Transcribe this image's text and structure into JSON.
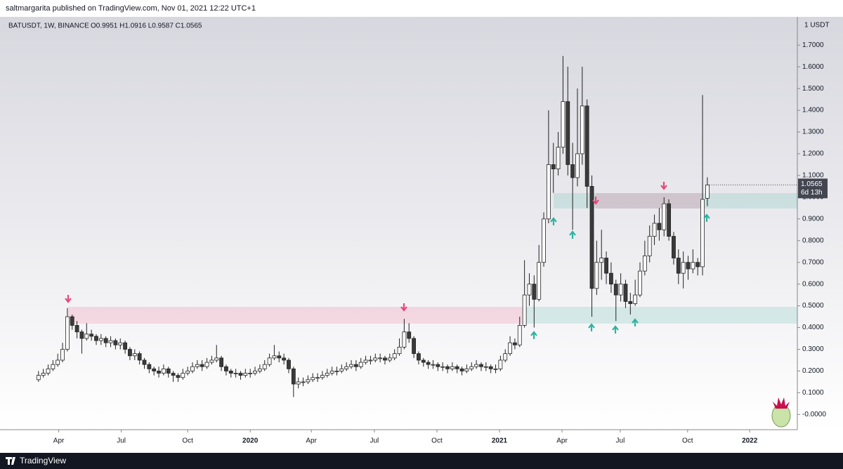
{
  "chart_data": {
    "type": "candlestick",
    "byline": "saltmargarita published on TradingView.com, Nov 01, 2021 12:22 UTC+1",
    "symbol": "BATUSDT, 1W, BINANCE",
    "ohlc_text": "O0.9951  H1.0916  L0.9587  C1.0565",
    "currency": "1 USDT",
    "last_price_label": "1.0565",
    "countdown": "6d 13h",
    "brand": "TradingView",
    "up_color": "#ffffff",
    "down_color": "#3a3a3a",
    "wick_color": "#222222",
    "open": [
      0.16,
      0.18,
      0.19,
      0.21,
      0.23,
      0.25,
      0.3,
      0.45,
      0.41,
      0.38,
      0.35,
      0.37,
      0.36,
      0.34,
      0.35,
      0.33,
      0.34,
      0.32,
      0.33,
      0.3,
      0.27,
      0.28,
      0.25,
      0.23,
      0.21,
      0.2,
      0.19,
      0.21,
      0.19,
      0.18,
      0.17,
      0.19,
      0.2,
      0.22,
      0.23,
      0.22,
      0.24,
      0.25,
      0.26,
      0.22,
      0.2,
      0.19,
      0.19,
      0.18,
      0.19,
      0.19,
      0.2,
      0.21,
      0.23,
      0.26,
      0.27,
      0.26,
      0.25,
      0.21,
      0.14,
      0.15,
      0.15,
      0.16,
      0.17,
      0.17,
      0.18,
      0.19,
      0.2,
      0.2,
      0.21,
      0.22,
      0.23,
      0.22,
      0.24,
      0.25,
      0.25,
      0.26,
      0.26,
      0.25,
      0.26,
      0.28,
      0.31,
      0.38,
      0.35,
      0.28,
      0.25,
      0.24,
      0.23,
      0.23,
      0.22,
      0.22,
      0.21,
      0.22,
      0.21,
      0.2,
      0.21,
      0.22,
      0.23,
      0.22,
      0.22,
      0.21,
      0.21,
      0.25,
      0.28,
      0.33,
      0.32,
      0.41,
      0.55,
      0.6,
      0.53,
      0.7,
      0.9,
      1.15,
      1.13,
      1.23,
      1.44,
      1.15,
      1.09,
      1.2,
      1.42,
      1.05,
      0.58,
      0.7,
      0.72,
      0.65,
      0.6,
      0.55,
      0.6,
      0.52,
      0.51,
      0.55,
      0.66,
      0.73,
      0.82,
      0.88,
      0.85,
      0.97,
      0.82,
      0.72,
      0.65,
      0.7,
      0.67,
      0.7,
      0.68,
      0.9951
    ],
    "high": [
      0.2,
      0.21,
      0.23,
      0.25,
      0.28,
      0.33,
      0.49,
      0.46,
      0.43,
      0.39,
      0.42,
      0.39,
      0.37,
      0.37,
      0.36,
      0.36,
      0.35,
      0.35,
      0.34,
      0.31,
      0.3,
      0.29,
      0.26,
      0.24,
      0.22,
      0.22,
      0.23,
      0.22,
      0.2,
      0.19,
      0.21,
      0.22,
      0.24,
      0.25,
      0.25,
      0.26,
      0.27,
      0.32,
      0.27,
      0.23,
      0.21,
      0.21,
      0.2,
      0.21,
      0.21,
      0.22,
      0.23,
      0.25,
      0.28,
      0.32,
      0.29,
      0.28,
      0.26,
      0.22,
      0.17,
      0.17,
      0.18,
      0.19,
      0.19,
      0.2,
      0.21,
      0.22,
      0.22,
      0.23,
      0.24,
      0.25,
      0.25,
      0.26,
      0.27,
      0.27,
      0.28,
      0.28,
      0.27,
      0.28,
      0.3,
      0.35,
      0.44,
      0.42,
      0.36,
      0.29,
      0.26,
      0.25,
      0.25,
      0.24,
      0.24,
      0.23,
      0.24,
      0.23,
      0.22,
      0.23,
      0.24,
      0.25,
      0.24,
      0.24,
      0.23,
      0.23,
      0.27,
      0.3,
      0.36,
      0.35,
      0.45,
      0.71,
      0.65,
      0.64,
      0.78,
      0.93,
      1.4,
      1.25,
      1.3,
      1.65,
      1.6,
      1.25,
      1.5,
      1.6,
      1.45,
      1.1,
      0.8,
      0.85,
      0.75,
      0.7,
      0.62,
      0.65,
      0.62,
      0.56,
      0.62,
      0.7,
      0.8,
      0.87,
      0.92,
      0.95,
      1.0,
      0.99,
      0.84,
      0.76,
      0.75,
      0.73,
      0.76,
      0.72,
      1.47,
      1.0916
    ],
    "low": [
      0.15,
      0.17,
      0.18,
      0.2,
      0.22,
      0.24,
      0.29,
      0.39,
      0.35,
      0.28,
      0.34,
      0.34,
      0.32,
      0.32,
      0.31,
      0.31,
      0.3,
      0.3,
      0.28,
      0.25,
      0.25,
      0.23,
      0.21,
      0.19,
      0.18,
      0.17,
      0.18,
      0.17,
      0.15,
      0.15,
      0.16,
      0.18,
      0.19,
      0.21,
      0.2,
      0.21,
      0.23,
      0.24,
      0.2,
      0.18,
      0.17,
      0.17,
      0.16,
      0.17,
      0.17,
      0.18,
      0.19,
      0.2,
      0.22,
      0.25,
      0.24,
      0.23,
      0.19,
      0.08,
      0.12,
      0.13,
      0.14,
      0.15,
      0.15,
      0.16,
      0.17,
      0.18,
      0.18,
      0.19,
      0.2,
      0.21,
      0.2,
      0.21,
      0.23,
      0.23,
      0.24,
      0.24,
      0.23,
      0.24,
      0.25,
      0.27,
      0.3,
      0.33,
      0.26,
      0.23,
      0.22,
      0.21,
      0.21,
      0.2,
      0.2,
      0.19,
      0.2,
      0.19,
      0.18,
      0.19,
      0.2,
      0.21,
      0.2,
      0.2,
      0.19,
      0.19,
      0.2,
      0.24,
      0.27,
      0.3,
      0.31,
      0.4,
      0.5,
      0.4,
      0.52,
      0.68,
      0.88,
      1.02,
      1.1,
      1.2,
      1.1,
      0.85,
      1.05,
      1.15,
      0.95,
      0.45,
      0.55,
      0.62,
      0.6,
      0.56,
      0.43,
      0.52,
      0.49,
      0.46,
      0.5,
      0.54,
      0.64,
      0.7,
      0.78,
      0.8,
      0.82,
      0.8,
      0.69,
      0.6,
      0.58,
      0.62,
      0.65,
      0.64,
      0.64,
      0.9587
    ],
    "close": [
      0.18,
      0.19,
      0.21,
      0.23,
      0.25,
      0.3,
      0.45,
      0.41,
      0.38,
      0.35,
      0.37,
      0.36,
      0.34,
      0.35,
      0.33,
      0.34,
      0.32,
      0.33,
      0.3,
      0.27,
      0.28,
      0.25,
      0.23,
      0.21,
      0.2,
      0.19,
      0.21,
      0.19,
      0.18,
      0.17,
      0.19,
      0.2,
      0.22,
      0.23,
      0.22,
      0.24,
      0.25,
      0.26,
      0.22,
      0.2,
      0.19,
      0.19,
      0.18,
      0.19,
      0.19,
      0.2,
      0.21,
      0.23,
      0.26,
      0.27,
      0.26,
      0.25,
      0.21,
      0.14,
      0.15,
      0.15,
      0.16,
      0.17,
      0.17,
      0.18,
      0.19,
      0.2,
      0.2,
      0.21,
      0.22,
      0.23,
      0.22,
      0.24,
      0.25,
      0.25,
      0.26,
      0.26,
      0.25,
      0.26,
      0.28,
      0.31,
      0.38,
      0.35,
      0.28,
      0.25,
      0.24,
      0.23,
      0.23,
      0.22,
      0.22,
      0.21,
      0.22,
      0.21,
      0.2,
      0.21,
      0.22,
      0.23,
      0.22,
      0.22,
      0.21,
      0.21,
      0.25,
      0.28,
      0.33,
      0.32,
      0.41,
      0.55,
      0.6,
      0.53,
      0.7,
      0.9,
      1.15,
      1.13,
      1.23,
      1.44,
      1.15,
      1.09,
      1.2,
      1.42,
      1.05,
      0.58,
      0.7,
      0.72,
      0.65,
      0.6,
      0.55,
      0.6,
      0.52,
      0.51,
      0.55,
      0.66,
      0.73,
      0.82,
      0.88,
      0.85,
      0.97,
      0.82,
      0.72,
      0.65,
      0.7,
      0.67,
      0.7,
      0.68,
      0.99,
      1.0565
    ],
    "xlim": [
      -8,
      157.7
    ],
    "xticks": [
      {
        "value": 4.2,
        "label": "Apr"
      },
      {
        "value": 17.2,
        "label": "Jul"
      },
      {
        "value": 31,
        "label": "Oct"
      },
      {
        "value": 44,
        "label": "2020"
      },
      {
        "value": 56.7,
        "label": "Apr"
      },
      {
        "value": 69.8,
        "label": "Jul"
      },
      {
        "value": 82.8,
        "label": "Oct"
      },
      {
        "value": 95.8,
        "label": "2021"
      },
      {
        "value": 108.8,
        "label": "Apr"
      },
      {
        "value": 120.9,
        "label": "Jul"
      },
      {
        "value": 134.9,
        "label": "Oct"
      },
      {
        "value": 147.8,
        "label": "2022"
      }
    ],
    "ylim": [
      -0.07,
      1.83
    ],
    "yticks": [
      {
        "value": 0,
        "label": "-0.0000"
      },
      {
        "value": 0.1,
        "label": "0.1000"
      },
      {
        "value": 0.2,
        "label": "0.2000"
      },
      {
        "value": 0.3,
        "label": "0.3000"
      },
      {
        "value": 0.4,
        "label": "0.4000"
      },
      {
        "value": 0.5,
        "label": "0.5000"
      },
      {
        "value": 0.6,
        "label": "0.6000"
      },
      {
        "value": 0.7,
        "label": "0.7000"
      },
      {
        "value": 0.8,
        "label": "0.8000"
      },
      {
        "value": 0.9,
        "label": "0.9000"
      },
      {
        "value": 1.0,
        "label": "1.0000"
      },
      {
        "value": 1.1,
        "label": "1.1000"
      },
      {
        "value": 1.2,
        "label": "1.2000"
      },
      {
        "value": 1.3,
        "label": "1.3000"
      },
      {
        "value": 1.4,
        "label": "1.4000"
      },
      {
        "value": 1.5,
        "label": "1.5000"
      },
      {
        "value": 1.6,
        "label": "1.6000"
      },
      {
        "value": 1.7,
        "label": "1.7000"
      }
    ]
  }
}
